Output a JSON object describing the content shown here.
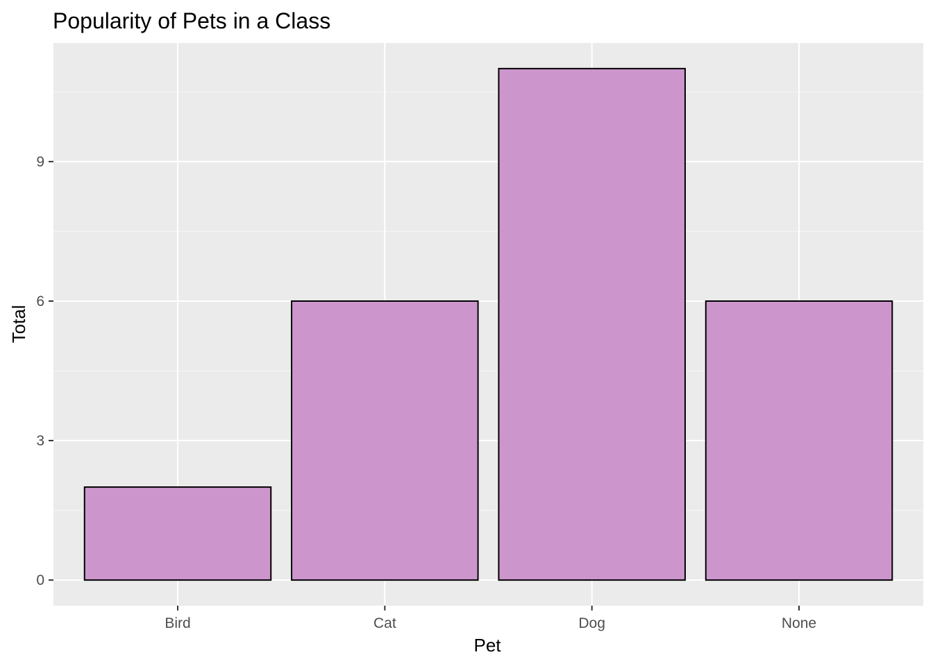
{
  "chart_data": {
    "type": "bar",
    "title": "Popularity of Pets in a Class",
    "xlabel": "Pet",
    "ylabel": "Total",
    "categories": [
      "Bird",
      "Cat",
      "Dog",
      "None"
    ],
    "values": [
      2,
      6,
      11,
      6
    ],
    "yticks": [
      0,
      3,
      6,
      9
    ],
    "ytick_labels": [
      "0",
      "3",
      "6",
      "9"
    ],
    "ylim": [
      -0.55,
      11.55
    ],
    "grid": true,
    "legend": "none",
    "colors": {
      "bar_fill": "#cc96cc",
      "bar_outline": "#000000",
      "panel_background": "#ebebeb",
      "grid_major": "#ffffff",
      "grid_minor": "#f5f5f5",
      "tick_text": "#4d4d4d"
    }
  }
}
